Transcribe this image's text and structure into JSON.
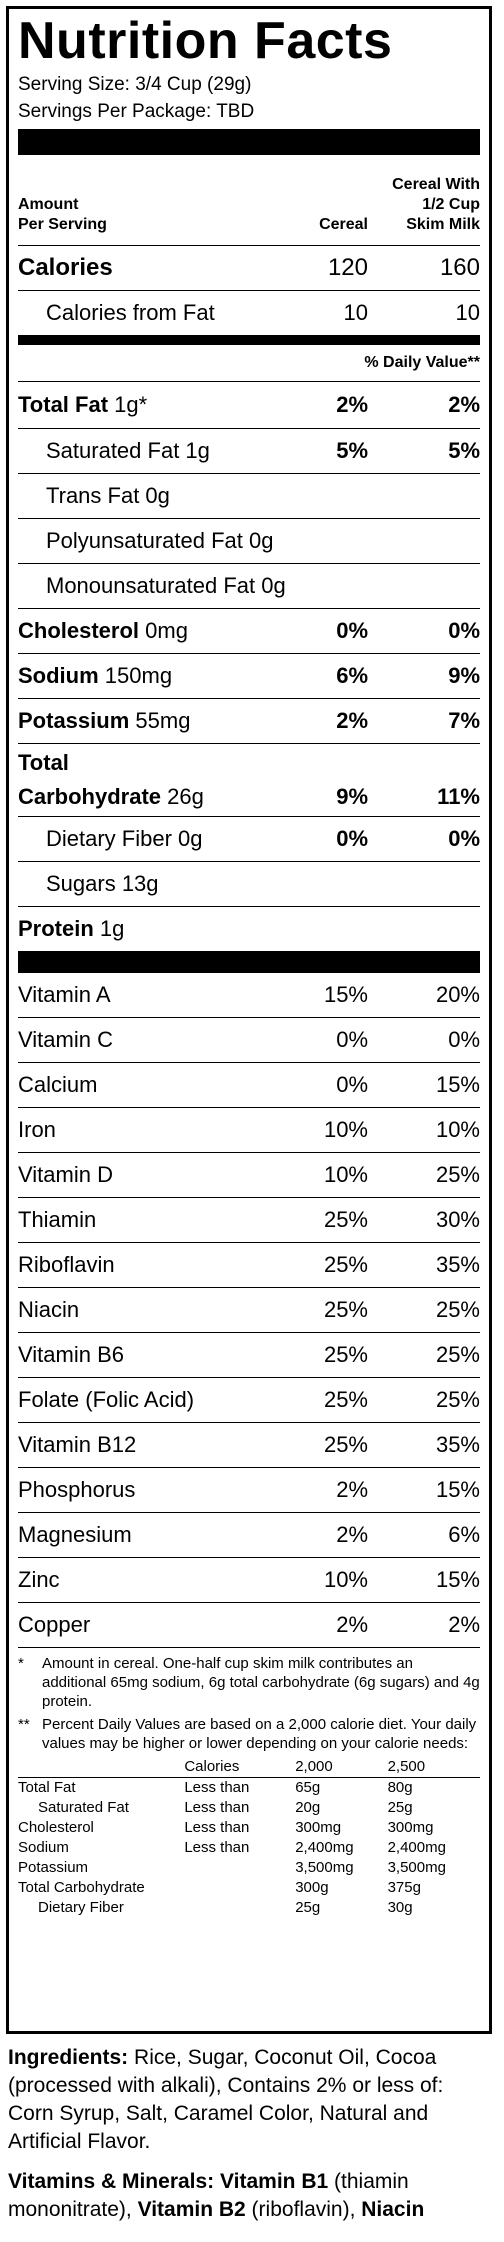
{
  "title": "Nutrition Facts",
  "serving_size": "Serving Size: 3/4 Cup (29g)",
  "servings_per_package": "Servings Per Package: TBD",
  "header": {
    "amount": "Amount",
    "per_serving": "Per Serving",
    "col1": "Cereal",
    "col2_line1": "Cereal With",
    "col2_line2": "1/2 Cup",
    "col2_line3": "Skim Milk"
  },
  "calories": {
    "label": "Calories",
    "v1": "120",
    "v2": "160"
  },
  "calories_from_fat": {
    "label": "Calories from Fat",
    "v1": "10",
    "v2": "10"
  },
  "daily_value_header": "% Daily Value**",
  "total_fat": {
    "label": "Total Fat",
    "amount": "1g*",
    "v1": "2%",
    "v2": "2%"
  },
  "saturated_fat": {
    "label": "Saturated Fat 1g",
    "v1": "5%",
    "v2": "5%"
  },
  "trans_fat": {
    "label": "Trans Fat 0g"
  },
  "poly_fat": {
    "label": "Polyunsaturated Fat 0g"
  },
  "mono_fat": {
    "label": "Monounsaturated Fat 0g"
  },
  "cholesterol": {
    "label": "Cholesterol",
    "amount": "0mg",
    "v1": "0%",
    "v2": "0%"
  },
  "sodium": {
    "label": "Sodium",
    "amount": "150mg",
    "v1": "6%",
    "v2": "9%"
  },
  "potassium": {
    "label": "Potassium",
    "amount": "55mg",
    "v1": "2%",
    "v2": "7%"
  },
  "total_carb": {
    "label1": "Total",
    "label2": "Carbohydrate",
    "amount": "26g",
    "v1": "9%",
    "v2": "11%"
  },
  "dietary_fiber": {
    "label": "Dietary Fiber 0g",
    "v1": "0%",
    "v2": "0%"
  },
  "sugars": {
    "label": "Sugars 13g"
  },
  "protein": {
    "label": "Protein",
    "amount": "1g"
  },
  "vitamins": [
    {
      "name": "Vitamin A",
      "v1": "15%",
      "v2": "20%"
    },
    {
      "name": "Vitamin C",
      "v1": "0%",
      "v2": "0%"
    },
    {
      "name": "Calcium",
      "v1": "0%",
      "v2": "15%"
    },
    {
      "name": "Iron",
      "v1": "10%",
      "v2": "10%"
    },
    {
      "name": "Vitamin D",
      "v1": "10%",
      "v2": "25%"
    },
    {
      "name": "Thiamin",
      "v1": "25%",
      "v2": "30%"
    },
    {
      "name": "Riboflavin",
      "v1": "25%",
      "v2": "35%"
    },
    {
      "name": "Niacin",
      "v1": "25%",
      "v2": "25%"
    },
    {
      "name": "Vitamin B6",
      "v1": "25%",
      "v2": "25%"
    },
    {
      "name": "Folate (Folic Acid)",
      "v1": "25%",
      "v2": "25%"
    },
    {
      "name": "Vitamin B12",
      "v1": "25%",
      "v2": "35%"
    },
    {
      "name": "Phosphorus",
      "v1": "2%",
      "v2": "15%"
    },
    {
      "name": "Magnesium",
      "v1": "2%",
      "v2": "6%"
    },
    {
      "name": "Zinc",
      "v1": "10%",
      "v2": "15%"
    },
    {
      "name": "Copper",
      "v1": "2%",
      "v2": "2%"
    }
  ],
  "footnote1": {
    "mark": "*",
    "text": "Amount in cereal. One-half cup skim milk contributes an additional 65mg sodium, 6g total carbohydrate (6g sugars) and 4g protein."
  },
  "footnote2": {
    "mark": "**",
    "text": "Percent Daily Values are based on a 2,000 calorie diet. Your daily values may be higher or lower depending on your calorie needs:"
  },
  "dv_table": {
    "head": [
      "",
      "Calories",
      "2,000",
      "2,500"
    ],
    "rows": [
      [
        "Total Fat",
        "Less than",
        "65g",
        "80g"
      ],
      [
        "Saturated Fat",
        "Less than",
        "20g",
        "25g"
      ],
      [
        "Cholesterol",
        "Less than",
        "300mg",
        "300mg"
      ],
      [
        "Sodium",
        "Less than",
        "2,400mg",
        "2,400mg"
      ],
      [
        "Potassium",
        "",
        "3,500mg",
        "3,500mg"
      ],
      [
        "Total Carbohydrate",
        "",
        "300g",
        "375g"
      ],
      [
        "Dietary Fiber",
        "",
        "25g",
        "30g"
      ]
    ]
  },
  "ingredients": {
    "label": "Ingredients:",
    "text": " Rice, Sugar, Coconut Oil, Cocoa (processed with alkali), Contains 2% or less of: Corn Syrup, Salt, Caramel Color, Natural and Artificial Flavor."
  },
  "vitamins_minerals": {
    "label": "Vitamins & Minerals:",
    "b1_label": "Vitamin B1",
    "b1_text": " (thiamin mononitrate), ",
    "b2_label": "Vitamin B2",
    "b2_text": " (riboflavin), ",
    "niacin_label": "Niacin"
  }
}
